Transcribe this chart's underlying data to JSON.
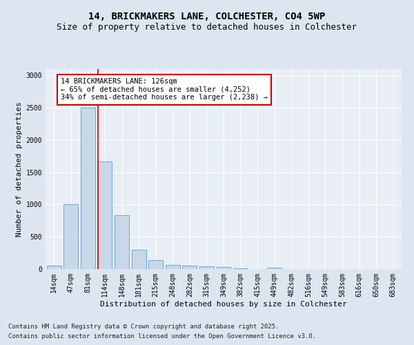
{
  "title_line1": "14, BRICKMAKERS LANE, COLCHESTER, CO4 5WP",
  "title_line2": "Size of property relative to detached houses in Colchester",
  "xlabel": "Distribution of detached houses by size in Colchester",
  "ylabel": "Number of detached properties",
  "categories": [
    "14sqm",
    "47sqm",
    "81sqm",
    "114sqm",
    "148sqm",
    "181sqm",
    "215sqm",
    "248sqm",
    "282sqm",
    "315sqm",
    "349sqm",
    "382sqm",
    "415sqm",
    "449sqm",
    "482sqm",
    "516sqm",
    "549sqm",
    "583sqm",
    "616sqm",
    "650sqm",
    "683sqm"
  ],
  "values": [
    55,
    1010,
    2500,
    1670,
    830,
    295,
    140,
    60,
    55,
    40,
    30,
    15,
    0,
    25,
    0,
    0,
    0,
    0,
    0,
    0,
    0
  ],
  "bar_color": "#c8d8e8",
  "bar_edge_color": "#5b9bd5",
  "vline_position": 2.575,
  "vline_color": "#cc0000",
  "annotation_text": "14 BRICKMAKERS LANE: 126sqm\n← 65% of detached houses are smaller (4,252)\n34% of semi-detached houses are larger (2,238) →",
  "annotation_box_color": "#ffffff",
  "annotation_box_edge_color": "#cc0000",
  "ylim": [
    0,
    3100
  ],
  "yticks": [
    0,
    500,
    1000,
    1500,
    2000,
    2500,
    3000
  ],
  "bg_color": "#dde6f0",
  "plot_bg_color": "#e8eef5",
  "grid_color": "#ffffff",
  "footer_line1": "Contains HM Land Registry data © Crown copyright and database right 2025.",
  "footer_line2": "Contains public sector information licensed under the Open Government Licence v3.0.",
  "title_fontsize": 10,
  "subtitle_fontsize": 9,
  "annotation_fontsize": 7.5,
  "footer_fontsize": 6.5,
  "ylabel_fontsize": 8,
  "xlabel_fontsize": 8,
  "tick_fontsize": 7
}
